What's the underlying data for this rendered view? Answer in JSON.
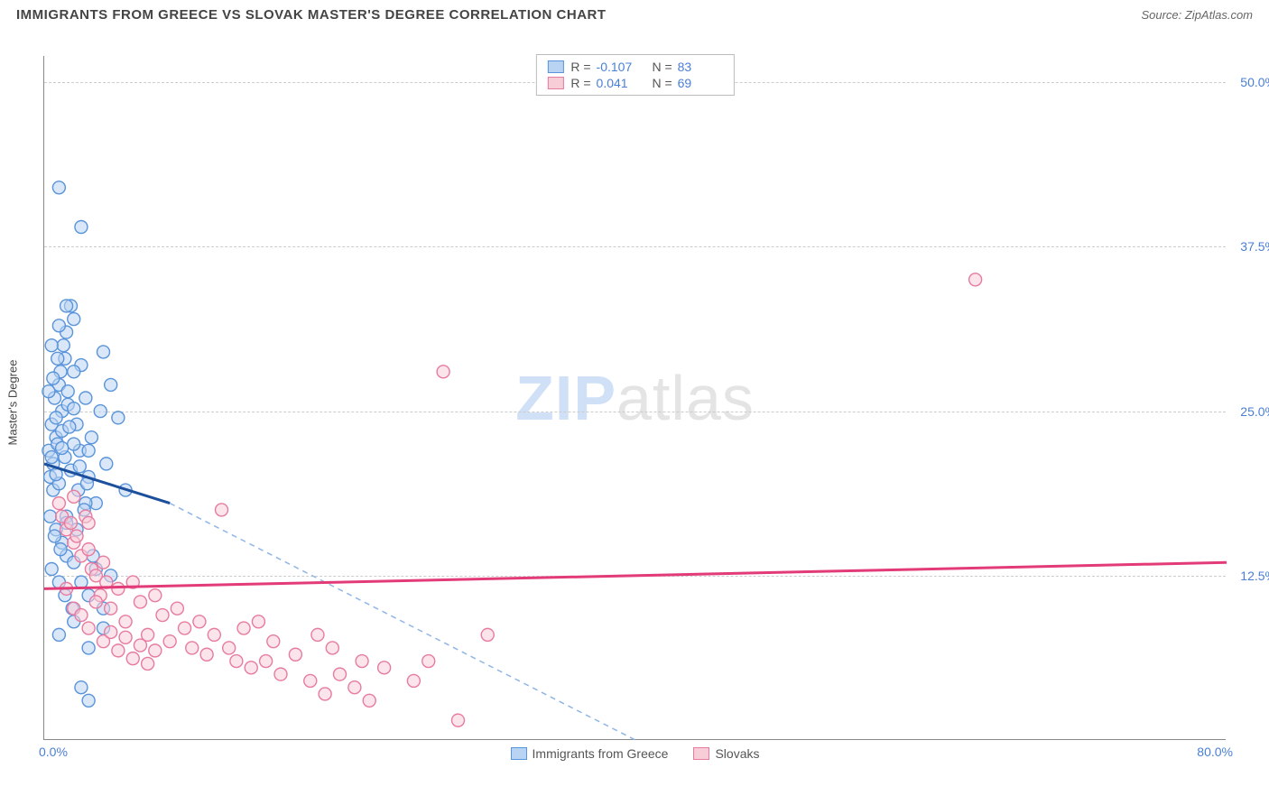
{
  "header": {
    "title": "IMMIGRANTS FROM GREECE VS SLOVAK MASTER'S DEGREE CORRELATION CHART",
    "source": "Source: ZipAtlas.com"
  },
  "watermark": {
    "part1": "ZIP",
    "part2": "atlas"
  },
  "chart": {
    "type": "scatter",
    "y_axis_label": "Master's Degree",
    "xlim": [
      0,
      80
    ],
    "ylim": [
      0,
      52
    ],
    "background_color": "#ffffff",
    "grid_color": "#cccccc",
    "axis_color": "#888888",
    "tick_label_color": "#4a7fd8",
    "ytick_values": [
      12.5,
      25.0,
      37.5,
      50.0
    ],
    "ytick_labels": [
      "12.5%",
      "25.0%",
      "37.5%",
      "50.0%"
    ],
    "x_min_label": "0.0%",
    "x_max_label": "80.0%",
    "marker_radius": 7,
    "marker_stroke_width": 1.4,
    "series": [
      {
        "name": "Immigrants from Greece",
        "fill_color": "#b9d4f3",
        "stroke_color": "#5a94da",
        "line_color": "#1c4f9c",
        "dash_color": "#8fb6e6",
        "R": "-0.107",
        "N": "83",
        "trend_solid": {
          "x1": 0,
          "y1": 21.0,
          "x2": 8.5,
          "y2": 18.0
        },
        "trend_dash": {
          "x1": 8.5,
          "y1": 18.0,
          "x2": 40,
          "y2": 0
        },
        "points": [
          [
            0.3,
            22
          ],
          [
            0.4,
            20
          ],
          [
            0.5,
            24
          ],
          [
            0.6,
            21
          ],
          [
            0.7,
            26
          ],
          [
            0.8,
            23
          ],
          [
            0.9,
            22.5
          ],
          [
            1.0,
            27
          ],
          [
            1.1,
            28
          ],
          [
            1.2,
            25
          ],
          [
            1.3,
            30
          ],
          [
            1.4,
            29
          ],
          [
            1.5,
            31
          ],
          [
            1.6,
            26.5
          ],
          [
            1.8,
            33
          ],
          [
            2.0,
            32
          ],
          [
            2.2,
            24
          ],
          [
            2.4,
            22
          ],
          [
            2.5,
            28.5
          ],
          [
            2.8,
            26
          ],
          [
            3.0,
            20
          ],
          [
            3.2,
            23
          ],
          [
            3.5,
            18
          ],
          [
            3.8,
            25
          ],
          [
            4.0,
            29.5
          ],
          [
            4.2,
            21
          ],
          [
            4.5,
            27
          ],
          [
            5.0,
            24.5
          ],
          [
            5.5,
            19
          ],
          [
            1.0,
            42
          ],
          [
            2.5,
            39
          ],
          [
            1.0,
            31.5
          ],
          [
            1.5,
            33
          ],
          [
            2.0,
            28
          ],
          [
            0.8,
            16
          ],
          [
            1.2,
            15
          ],
          [
            1.5,
            14
          ],
          [
            2.0,
            13.5
          ],
          [
            2.5,
            12
          ],
          [
            3.0,
            11
          ],
          [
            3.5,
            13
          ],
          [
            4.0,
            10
          ],
          [
            4.5,
            12.5
          ],
          [
            1.0,
            8
          ],
          [
            2.0,
            9
          ],
          [
            3.0,
            7
          ],
          [
            1.5,
            17
          ],
          [
            2.2,
            16
          ],
          [
            2.8,
            18
          ],
          [
            3.3,
            14
          ],
          [
            0.6,
            19
          ],
          [
            1.0,
            19.5
          ],
          [
            1.4,
            21.5
          ],
          [
            1.8,
            20.5
          ],
          [
            2.0,
            22.5
          ],
          [
            2.3,
            19
          ],
          [
            2.7,
            17.5
          ],
          [
            3.0,
            22
          ],
          [
            0.5,
            13
          ],
          [
            1.0,
            12
          ],
          [
            1.4,
            11
          ],
          [
            1.9,
            10
          ],
          [
            0.8,
            24.5
          ],
          [
            1.2,
            23.5
          ],
          [
            1.6,
            25.5
          ],
          [
            0.4,
            17
          ],
          [
            0.7,
            15.5
          ],
          [
            1.1,
            14.5
          ],
          [
            1.5,
            16.5
          ],
          [
            0.5,
            30
          ],
          [
            0.9,
            29
          ],
          [
            0.3,
            26.5
          ],
          [
            0.6,
            27.5
          ],
          [
            2.5,
            4
          ],
          [
            3.0,
            3
          ],
          [
            4.0,
            8.5
          ],
          [
            0.5,
            21.5
          ],
          [
            0.8,
            20.2
          ],
          [
            1.2,
            22.2
          ],
          [
            1.7,
            23.8
          ],
          [
            2.0,
            25.2
          ],
          [
            2.4,
            20.8
          ],
          [
            2.9,
            19.5
          ]
        ]
      },
      {
        "name": "Slovaks",
        "fill_color": "#f7cdd8",
        "stroke_color": "#e77ba0",
        "line_color": "#e23b78",
        "R": "0.041",
        "N": "69",
        "trend_solid": {
          "x1": 0,
          "y1": 11.5,
          "x2": 80,
          "y2": 13.5
        },
        "points": [
          [
            1.0,
            18
          ],
          [
            1.2,
            17
          ],
          [
            1.5,
            16
          ],
          [
            1.8,
            16.5
          ],
          [
            2.0,
            15
          ],
          [
            2.2,
            15.5
          ],
          [
            2.5,
            14
          ],
          [
            2.8,
            17
          ],
          [
            3.0,
            14.5
          ],
          [
            3.2,
            13
          ],
          [
            3.5,
            12.5
          ],
          [
            3.8,
            11
          ],
          [
            4.0,
            13.5
          ],
          [
            4.2,
            12
          ],
          [
            4.5,
            10
          ],
          [
            5.0,
            11.5
          ],
          [
            5.5,
            9
          ],
          [
            6.0,
            12
          ],
          [
            6.5,
            10.5
          ],
          [
            7.0,
            8
          ],
          [
            7.5,
            11
          ],
          [
            8.0,
            9.5
          ],
          [
            8.5,
            7.5
          ],
          [
            9.0,
            10
          ],
          [
            9.5,
            8.5
          ],
          [
            10,
            7
          ],
          [
            10.5,
            9
          ],
          [
            11,
            6.5
          ],
          [
            11.5,
            8
          ],
          [
            12,
            17.5
          ],
          [
            12.5,
            7
          ],
          [
            13,
            6
          ],
          [
            13.5,
            8.5
          ],
          [
            14,
            5.5
          ],
          [
            14.5,
            9
          ],
          [
            15,
            6
          ],
          [
            15.5,
            7.5
          ],
          [
            16,
            5
          ],
          [
            17,
            6.5
          ],
          [
            18,
            4.5
          ],
          [
            18.5,
            8
          ],
          [
            19,
            3.5
          ],
          [
            19.5,
            7
          ],
          [
            20,
            5
          ],
          [
            21,
            4
          ],
          [
            21.5,
            6
          ],
          [
            22,
            3
          ],
          [
            23,
            5.5
          ],
          [
            25,
            4.5
          ],
          [
            26,
            6
          ],
          [
            28,
            1.5
          ],
          [
            30,
            8
          ],
          [
            1.5,
            11.5
          ],
          [
            2.0,
            10
          ],
          [
            2.5,
            9.5
          ],
          [
            3.0,
            8.5
          ],
          [
            3.5,
            10.5
          ],
          [
            4.0,
            7.5
          ],
          [
            4.5,
            8.2
          ],
          [
            5.0,
            6.8
          ],
          [
            5.5,
            7.8
          ],
          [
            6.0,
            6.2
          ],
          [
            6.5,
            7.2
          ],
          [
            7.0,
            5.8
          ],
          [
            7.5,
            6.8
          ],
          [
            27,
            28
          ],
          [
            2.0,
            18.5
          ],
          [
            3.0,
            16.5
          ],
          [
            63,
            35
          ]
        ]
      }
    ],
    "legend_bottom": [
      {
        "label": "Immigrants from Greece",
        "swatch": 0
      },
      {
        "label": "Slovaks",
        "swatch": 1
      }
    ]
  }
}
